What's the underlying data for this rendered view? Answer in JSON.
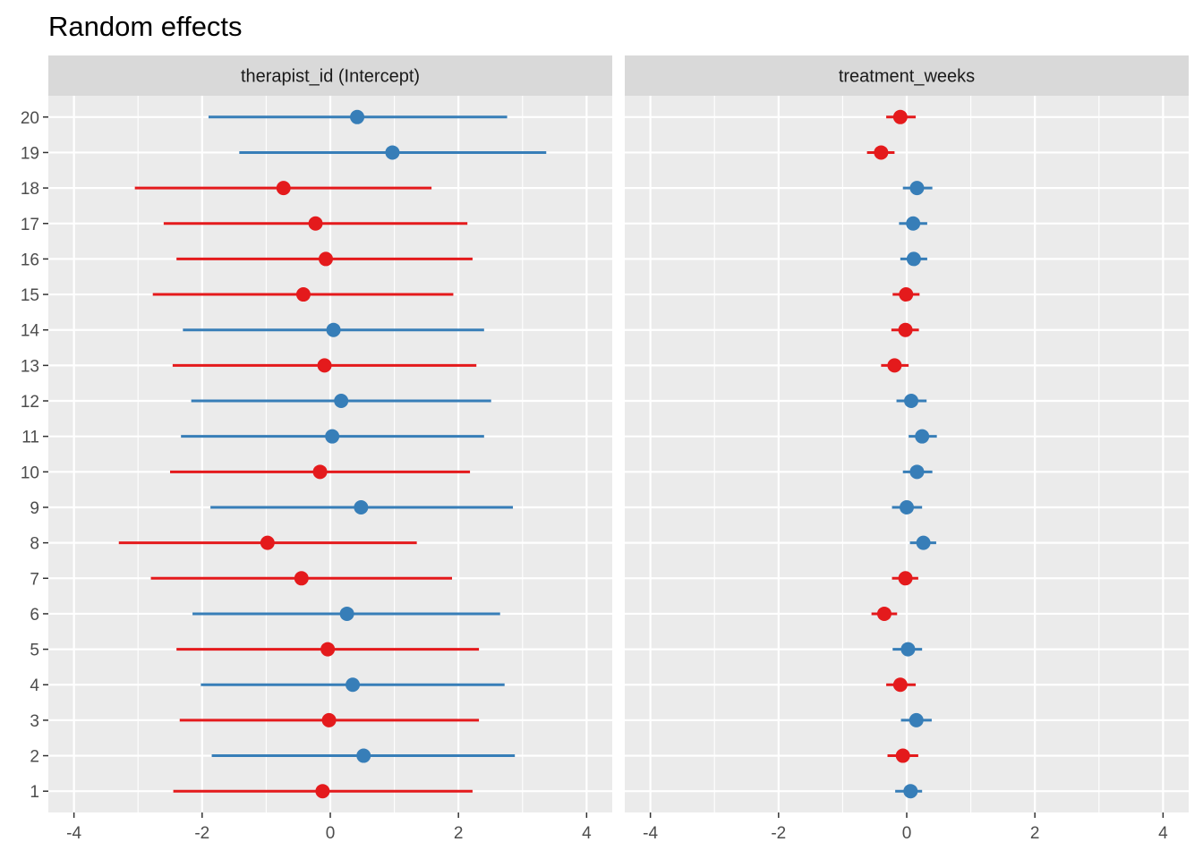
{
  "chart_data": {
    "type": "forest",
    "title": "Random effects",
    "xlabel": "",
    "ylabel": "",
    "grid": true,
    "legend": "none",
    "categories": [
      "1",
      "2",
      "3",
      "4",
      "5",
      "6",
      "7",
      "8",
      "9",
      "10",
      "11",
      "12",
      "13",
      "14",
      "15",
      "16",
      "17",
      "18",
      "19",
      "20"
    ],
    "x_ticks": [
      -4,
      -2,
      0,
      2,
      4
    ],
    "xlim": [
      -4.4,
      4.4
    ],
    "colors": {
      "positive": "#377EB8",
      "negative": "#E41A1C",
      "panel_bg": "#EBEBEB",
      "strip_bg": "#D9D9D9",
      "grid": "#FFFFFF"
    },
    "panels": [
      {
        "name": "therapist_id (Intercept)",
        "estimates": [
          -0.12,
          0.52,
          -0.02,
          0.35,
          -0.04,
          0.26,
          -0.45,
          -0.98,
          0.48,
          -0.16,
          0.03,
          0.17,
          -0.09,
          0.05,
          -0.42,
          -0.07,
          -0.23,
          -0.73,
          0.97,
          0.42
        ],
        "lower": [
          -2.45,
          -1.85,
          -2.35,
          -2.02,
          -2.4,
          -2.15,
          -2.8,
          -3.3,
          -1.87,
          -2.5,
          -2.33,
          -2.17,
          -2.46,
          -2.3,
          -2.77,
          -2.4,
          -2.6,
          -3.05,
          -1.42,
          -1.9
        ],
        "upper": [
          2.22,
          2.88,
          2.32,
          2.72,
          2.32,
          2.65,
          1.9,
          1.35,
          2.85,
          2.18,
          2.4,
          2.51,
          2.28,
          2.4,
          1.92,
          2.22,
          2.14,
          1.58,
          3.37,
          2.76
        ]
      },
      {
        "name": "treatment_weeks",
        "estimates": [
          0.06,
          -0.06,
          0.15,
          -0.1,
          0.02,
          -0.35,
          -0.02,
          0.26,
          0.0,
          0.16,
          0.24,
          0.07,
          -0.19,
          -0.02,
          -0.01,
          0.11,
          0.1,
          0.16,
          -0.4,
          -0.1
        ],
        "lower": [
          -0.18,
          -0.3,
          -0.09,
          -0.32,
          -0.22,
          -0.55,
          -0.23,
          0.05,
          -0.23,
          -0.06,
          0.03,
          -0.16,
          -0.4,
          -0.24,
          -0.22,
          -0.1,
          -0.12,
          -0.06,
          -0.62,
          -0.32
        ],
        "upper": [
          0.24,
          0.18,
          0.39,
          0.14,
          0.24,
          -0.15,
          0.18,
          0.46,
          0.24,
          0.4,
          0.47,
          0.31,
          0.03,
          0.19,
          0.2,
          0.32,
          0.32,
          0.4,
          -0.19,
          0.14
        ]
      }
    ]
  }
}
